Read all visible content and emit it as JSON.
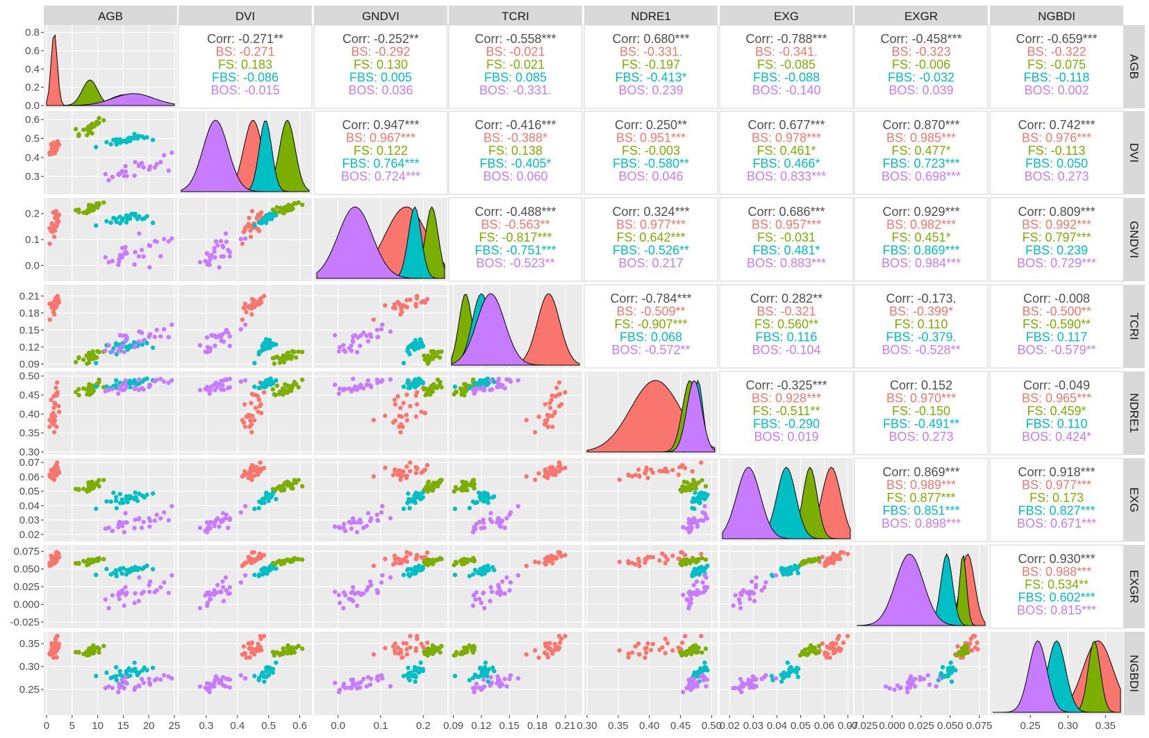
{
  "chart_data": {
    "type": "scatter",
    "variables": [
      "AGB",
      "DVI",
      "GNDVI",
      "TCRI",
      "NDRE1",
      "EXG",
      "EXGR",
      "NGBDI"
    ],
    "groups": [
      {
        "name": "BS",
        "color": "#F8766D"
      },
      {
        "name": "FS",
        "color": "#7CAE00"
      },
      {
        "name": "FBS",
        "color": "#00BFC4"
      },
      {
        "name": "BOS",
        "color": "#C77CFF"
      }
    ],
    "ranges": {
      "AGB": [
        0,
        25
      ],
      "DVI": [
        0.22,
        0.63
      ],
      "GNDVI": [
        -0.05,
        0.25
      ],
      "TCRI": [
        0.088,
        0.225
      ],
      "NDRE1": [
        0.3,
        0.505
      ],
      "EXG": [
        0.017,
        0.071
      ],
      "EXGR": [
        -0.03,
        0.08
      ],
      "NGBDI": [
        0.2,
        0.37
      ]
    },
    "x_ticks": {
      "AGB": [
        0,
        5,
        10,
        15,
        20,
        25
      ],
      "DVI": [
        0.3,
        0.4,
        0.5,
        0.6
      ],
      "GNDVI": [
        0.0,
        0.1,
        0.2
      ],
      "TCRI": [
        0.09,
        0.12,
        0.15,
        0.18,
        0.21
      ],
      "NDRE1": [
        0.3,
        0.35,
        0.4,
        0.45,
        0.5
      ],
      "EXG": [
        0.02,
        0.03,
        0.04,
        0.05,
        0.06,
        0.07
      ],
      "EXGR": [
        -0.025,
        0.0,
        0.025,
        0.05,
        0.075
      ],
      "NGBDI": [
        0.25,
        0.3,
        0.35
      ]
    },
    "x_tick_labels": {
      "AGB": [
        "0",
        "5",
        "10",
        "15",
        "20",
        "25"
      ],
      "DVI": [
        "0.3",
        "0.4",
        "0.5",
        "0.6"
      ],
      "GNDVI": [
        "0.0",
        "0.1",
        "0.2"
      ],
      "TCRI": [
        "0.09",
        "0.12",
        "0.15",
        "0.18",
        "0.21"
      ],
      "NDRE1": [
        "0.30",
        "0.35",
        "0.40",
        "0.45",
        "0.50"
      ],
      "EXG": [
        "0.02",
        "0.03",
        "0.04",
        "0.05",
        "0.06",
        "0.07"
      ],
      "EXGR": [
        "-0.025",
        "0.000",
        "0.025",
        "0.050",
        "0.075"
      ],
      "NGBDI": [
        "0.25",
        "0.30",
        "0.35"
      ]
    },
    "y_ticks": {
      "AGB": [
        0.0,
        0.2,
        0.4,
        0.6,
        0.8
      ],
      "DVI": [
        0.3,
        0.4,
        0.5,
        0.6
      ],
      "GNDVI": [
        0.0,
        0.1,
        0.2
      ],
      "TCRI": [
        0.09,
        0.12,
        0.15,
        0.18,
        0.21
      ],
      "NDRE1": [
        0.3,
        0.35,
        0.4,
        0.45,
        0.5
      ],
      "EXG": [
        0.02,
        0.03,
        0.04,
        0.05,
        0.06,
        0.07
      ],
      "EXGR": [
        -0.025,
        0.0,
        0.025,
        0.05,
        0.075
      ],
      "NGBDI": [
        0.25,
        0.3,
        0.35
      ]
    },
    "y_tick_labels": {
      "AGB": [
        "0.0",
        "0.2",
        "0.4",
        "0.6",
        "0.8"
      ],
      "DVI": [
        "0.3",
        "0.4",
        "0.5",
        "0.6"
      ],
      "GNDVI": [
        "0.0",
        "0.1",
        "0.2"
      ],
      "TCRI": [
        "0.09",
        "0.12",
        "0.15",
        "0.18",
        "0.21"
      ],
      "NDRE1": [
        "0.30",
        "0.35",
        "0.40",
        "0.45",
        "0.50"
      ],
      "EXG": [
        "0.02",
        "0.03",
        "0.04",
        "0.05",
        "0.06",
        "0.07"
      ],
      "EXGR": [
        "-0.025",
        "0.000",
        "0.025",
        "0.050",
        "0.075"
      ],
      "NGBDI": [
        "0.25",
        "0.30",
        "0.35"
      ]
    },
    "group_stats": {
      "BS": {
        "AGB": [
          1.5,
          0.6
        ],
        "DVI": [
          0.45,
          0.03
        ],
        "GNDVI": [
          0.16,
          0.05
        ],
        "TCRI": [
          0.192,
          0.012
        ],
        "NDRE1": [
          0.41,
          0.04
        ],
        "EXG": [
          0.063,
          0.004
        ],
        "EXGR": [
          0.065,
          0.006
        ],
        "NGBDI": [
          0.34,
          0.02
        ]
      },
      "FS": {
        "AGB": [
          8.5,
          1.5
        ],
        "DVI": [
          0.56,
          0.025
        ],
        "GNDVI": [
          0.22,
          0.015
        ],
        "TCRI": [
          0.103,
          0.007
        ],
        "NDRE1": [
          0.465,
          0.012
        ],
        "EXG": [
          0.054,
          0.003
        ],
        "EXGR": [
          0.061,
          0.003
        ],
        "NGBDI": [
          0.335,
          0.008
        ]
      },
      "FBS": {
        "AGB": [
          15.5,
          3.0
        ],
        "DVI": [
          0.49,
          0.02
        ],
        "GNDVI": [
          0.18,
          0.015
        ],
        "TCRI": [
          0.12,
          0.01
        ],
        "NDRE1": [
          0.478,
          0.008
        ],
        "EXG": [
          0.044,
          0.004
        ],
        "EXGR": [
          0.047,
          0.005
        ],
        "NGBDI": [
          0.285,
          0.012
        ]
      },
      "BOS": {
        "AGB": [
          17,
          4.0
        ],
        "DVI": [
          0.33,
          0.04
        ],
        "GNDVI": [
          0.04,
          0.04
        ],
        "TCRI": [
          0.13,
          0.015
        ],
        "NDRE1": [
          0.472,
          0.012
        ],
        "EXG": [
          0.028,
          0.005
        ],
        "EXGR": [
          0.015,
          0.012
        ],
        "NGBDI": [
          0.26,
          0.012
        ]
      }
    },
    "density_peaks": {
      "AGB": {
        "BS": 0.8,
        "FS": 0.28,
        "FBS": 0.12,
        "BOS": 0.13
      }
    },
    "correlations": [
      {
        "row": "AGB",
        "col": "DVI",
        "lines": [
          "Corr: -0.271**",
          "BS: -0.271",
          "FS: 0.183",
          "FBS: -0.086",
          "BOS: -0.015"
        ]
      },
      {
        "row": "AGB",
        "col": "GNDVI",
        "lines": [
          "Corr: -0.252**",
          "BS: -0.292",
          "FS: 0.130",
          "FBS: 0.005",
          "BOS: 0.036"
        ]
      },
      {
        "row": "AGB",
        "col": "TCRI",
        "lines": [
          "Corr: -0.558***",
          "BS: -0.021",
          "FS: -0.021",
          "FBS: 0.085",
          "BOS: -0.331."
        ]
      },
      {
        "row": "AGB",
        "col": "NDRE1",
        "lines": [
          "Corr: 0.680***",
          "BS: -0.331.",
          "FS: -0.197",
          "FBS: -0.413*",
          "BOS: 0.239"
        ]
      },
      {
        "row": "AGB",
        "col": "EXG",
        "lines": [
          "Corr: -0.788***",
          "BS: -0.341.",
          "FS: -0.085",
          "FBS: -0.088",
          "BOS: -0.140"
        ]
      },
      {
        "row": "AGB",
        "col": "EXGR",
        "lines": [
          "Corr: -0.458***",
          "BS: -0.323",
          "FS: -0.006",
          "FBS: -0.032",
          "BOS: 0.039"
        ]
      },
      {
        "row": "AGB",
        "col": "NGBDI",
        "lines": [
          "Corr: -0.659***",
          "BS: -0.322",
          "FS: -0.075",
          "FBS: -0.118",
          "BOS: 0.002"
        ]
      },
      {
        "row": "DVI",
        "col": "GNDVI",
        "lines": [
          "Corr: 0.947***",
          "BS: 0.967***",
          "FS: 0.122",
          "FBS: 0.764***",
          "BOS: 0.724***"
        ]
      },
      {
        "row": "DVI",
        "col": "TCRI",
        "lines": [
          "Corr: -0.416***",
          "BS: -0.388*",
          "FS: 0.138",
          "FBS: -0.405*",
          "BOS: 0.060"
        ]
      },
      {
        "row": "DVI",
        "col": "NDRE1",
        "lines": [
          "Corr: 0.250**",
          "BS: 0.951***",
          "FS: -0.003",
          "FBS: -0.580**",
          "BOS: 0.046"
        ]
      },
      {
        "row": "DVI",
        "col": "EXG",
        "lines": [
          "Corr: 0.677***",
          "BS: 0.978***",
          "FS: 0.461*",
          "FBS: 0.466*",
          "BOS: 0.833***"
        ]
      },
      {
        "row": "DVI",
        "col": "EXGR",
        "lines": [
          "Corr: 0.870***",
          "BS: 0.985***",
          "FS: 0.477*",
          "FBS: 0.723***",
          "BOS: 0.698***"
        ]
      },
      {
        "row": "DVI",
        "col": "NGBDI",
        "lines": [
          "Corr: 0.742***",
          "BS: 0.976***",
          "FS: -0.113",
          "FBS: 0.050",
          "BOS: 0.273"
        ]
      },
      {
        "row": "GNDVI",
        "col": "TCRI",
        "lines": [
          "Corr: -0.488***",
          "BS: -0.563**",
          "FS: -0.817***",
          "FBS: -0.751***",
          "BOS: -0.523**"
        ]
      },
      {
        "row": "GNDVI",
        "col": "NDRE1",
        "lines": [
          "Corr: 0.324***",
          "BS: 0.977***",
          "FS: 0.642***",
          "FBS: -0.526**",
          "BOS: 0.217"
        ]
      },
      {
        "row": "GNDVI",
        "col": "EXG",
        "lines": [
          "Corr: 0.686***",
          "BS: 0.957***",
          "FS: -0.031",
          "FBS: 0.481*",
          "BOS: 0.883***"
        ]
      },
      {
        "row": "GNDVI",
        "col": "EXGR",
        "lines": [
          "Corr: 0.929***",
          "BS: 0.982***",
          "FS: 0.451*",
          "FBS: 0.869***",
          "BOS: 0.984***"
        ]
      },
      {
        "row": "GNDVI",
        "col": "NGBDI",
        "lines": [
          "Corr: 0.809***",
          "BS: 0.992***",
          "FS: 0.797***",
          "FBS: 0.239",
          "BOS: 0.729***"
        ]
      },
      {
        "row": "TCRI",
        "col": "NDRE1",
        "lines": [
          "Corr: -0.784***",
          "BS: -0.509**",
          "FS: -0.907***",
          "FBS: 0.068",
          "BOS: -0.572**"
        ]
      },
      {
        "row": "TCRI",
        "col": "EXG",
        "lines": [
          "Corr: 0.282**",
          "BS: -0.321",
          "FS: 0.560**",
          "FBS: 0.116",
          "BOS: -0.104"
        ]
      },
      {
        "row": "TCRI",
        "col": "EXGR",
        "lines": [
          "Corr: -0.173.",
          "BS: -0.399*",
          "FS: 0.110",
          "FBS: -0.379.",
          "BOS: -0.528**"
        ]
      },
      {
        "row": "TCRI",
        "col": "NGBDI",
        "lines": [
          "Corr: -0.008",
          "BS: -0.500**",
          "FS: -0.590**",
          "FBS: 0.117",
          "BOS: -0.579**"
        ]
      },
      {
        "row": "NDRE1",
        "col": "EXG",
        "lines": [
          "Corr: -0.325***",
          "BS: 0.928***",
          "FS: -0.511**",
          "FBS: -0.290",
          "BOS: 0.019"
        ]
      },
      {
        "row": "NDRE1",
        "col": "EXGR",
        "lines": [
          "Corr: 0.152",
          "BS: 0.970***",
          "FS: -0.150",
          "FBS: -0.491**",
          "BOS: 0.273"
        ]
      },
      {
        "row": "NDRE1",
        "col": "NGBDI",
        "lines": [
          "Corr: -0.049",
          "BS: 0.965***",
          "FS: 0.459*",
          "FBS: 0.110",
          "BOS: 0.424*"
        ]
      },
      {
        "row": "EXG",
        "col": "EXGR",
        "lines": [
          "Corr: 0.869***",
          "BS: 0.989***",
          "FS: 0.877***",
          "FBS: 0.851***",
          "BOS: 0.898***"
        ]
      },
      {
        "row": "EXG",
        "col": "NGBDI",
        "lines": [
          "Corr: 0.918***",
          "BS: 0.977***",
          "FS: 0.173",
          "FBS: 0.827***",
          "BOS: 0.671***"
        ]
      },
      {
        "row": "EXGR",
        "col": "NGBDI",
        "lines": [
          "Corr: 0.930***",
          "BS: 0.988***",
          "FS: 0.534**",
          "FBS: 0.602***",
          "BOS: 0.815***"
        ]
      }
    ]
  }
}
